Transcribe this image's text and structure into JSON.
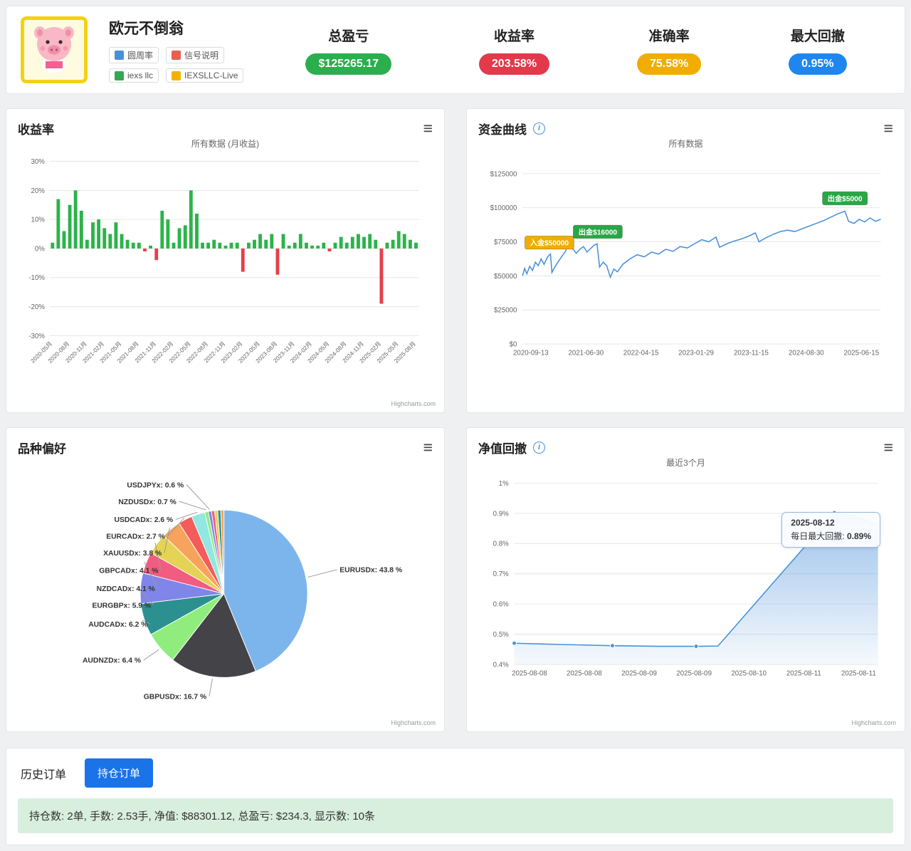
{
  "header": {
    "title": "欧元不倒翁",
    "tags": [
      {
        "label": "圆周率",
        "icon": "user-icon",
        "icon_color": "#4a90d9"
      },
      {
        "label": "信号说明",
        "icon": "signal-doc-icon",
        "icon_color": "#e8604c"
      },
      {
        "label": "iexs llc",
        "icon": "broker-icon",
        "icon_color": "#35a853"
      },
      {
        "label": "IEXSLLC-Live",
        "icon": "account-icon",
        "icon_color": "#f0b400"
      }
    ],
    "stats": [
      {
        "label": "总盈亏",
        "value": "$125265.17",
        "color": "#2bae4e"
      },
      {
        "label": "收益率",
        "value": "203.58%",
        "color": "#e2394b"
      },
      {
        "label": "准确率",
        "value": "75.58%",
        "color": "#f0ad00"
      },
      {
        "label": "最大回撤",
        "value": "0.95%",
        "color": "#1e86ee"
      }
    ]
  },
  "panels": {
    "returns": {
      "title": "收益率",
      "subtitle": "所有数据 (月收益)",
      "credit": "Highcharts.com"
    },
    "equity": {
      "title": "资金曲线",
      "subtitle": "所有数据"
    },
    "symbols": {
      "title": "品种偏好",
      "credit": "Highcharts.com"
    },
    "drawdown": {
      "title": "净值回撤",
      "subtitle": "最近3个月",
      "credit": "Highcharts.com",
      "tooltip": {
        "date": "2025-08-12",
        "label": "每日最大回撤:",
        "value": "0.89%"
      }
    }
  },
  "chart_data": [
    {
      "name": "monthly_returns",
      "type": "bar",
      "title": "收益率",
      "subtitle": "所有数据 (月收益)",
      "ylim": [
        -30,
        30
      ],
      "ytick_step": 10,
      "positive_color": "#2cb34a",
      "negative_color": "#e5404a",
      "values": [
        2,
        17,
        6,
        15,
        20,
        13,
        3,
        9,
        10,
        7,
        5,
        9,
        5,
        3,
        2,
        2,
        -1,
        1,
        -4,
        13,
        10,
        2,
        7,
        8,
        20,
        12,
        2,
        2,
        3,
        2,
        1,
        2,
        2,
        -8,
        2,
        3,
        5,
        3,
        5,
        -9,
        5,
        1,
        2,
        5,
        2,
        1,
        1,
        2,
        -1,
        2,
        4,
        2,
        4,
        5,
        4,
        5,
        3,
        -19,
        2,
        3,
        6,
        5,
        3,
        2
      ],
      "tick_every": 3,
      "x_tick_labels": [
        "2020-05月",
        "2020-08月",
        "2020-11月",
        "2021-02月",
        "2021-05月",
        "2021-08月",
        "2021-11月",
        "2022-02月",
        "2022-05月",
        "2022-08月",
        "2022-11月",
        "2023-02月",
        "2023-05月",
        "2023-08月",
        "2023-11月",
        "2024-02月",
        "2024-05月",
        "2024-08月",
        "2024-11月",
        "2025-02月",
        "2025-05月",
        "2025-08月"
      ]
    },
    {
      "name": "equity_curve",
      "type": "line",
      "title": "资金曲线",
      "subtitle": "所有数据",
      "line_color": "#4a90d9",
      "ymax": 131000,
      "yticks": [
        0,
        25000,
        50000,
        75000,
        100000,
        125000
      ],
      "x_labels": [
        "2020-09-13",
        "2021-06-30",
        "2022-04-15",
        "2023-01-29",
        "2023-11-15",
        "2024-08-30",
        "2025-06-15"
      ],
      "points": [
        [
          0,
          50000
        ],
        [
          0.006,
          55500
        ],
        [
          0.012,
          51500
        ],
        [
          0.02,
          57000
        ],
        [
          0.028,
          54000
        ],
        [
          0.036,
          60000
        ],
        [
          0.044,
          57500
        ],
        [
          0.052,
          62500
        ],
        [
          0.06,
          58500
        ],
        [
          0.07,
          64000
        ],
        [
          0.078,
          66000
        ],
        [
          0.082,
          52500
        ],
        [
          0.09,
          56500
        ],
        [
          0.1,
          60500
        ],
        [
          0.11,
          64500
        ],
        [
          0.12,
          68000
        ],
        [
          0.13,
          75500
        ],
        [
          0.14,
          70000
        ],
        [
          0.15,
          66500
        ],
        [
          0.16,
          69500
        ],
        [
          0.17,
          71500
        ],
        [
          0.18,
          67500
        ],
        [
          0.19,
          70000
        ],
        [
          0.2,
          72500
        ],
        [
          0.208,
          73500
        ],
        [
          0.215,
          56500
        ],
        [
          0.225,
          60000
        ],
        [
          0.235,
          57500
        ],
        [
          0.245,
          49000
        ],
        [
          0.255,
          55000
        ],
        [
          0.265,
          53000
        ],
        [
          0.28,
          58500
        ],
        [
          0.3,
          62500
        ],
        [
          0.32,
          65500
        ],
        [
          0.34,
          64000
        ],
        [
          0.36,
          67500
        ],
        [
          0.38,
          66000
        ],
        [
          0.4,
          69500
        ],
        [
          0.42,
          68000
        ],
        [
          0.44,
          71500
        ],
        [
          0.46,
          70500
        ],
        [
          0.48,
          73500
        ],
        [
          0.5,
          76500
        ],
        [
          0.52,
          75000
        ],
        [
          0.54,
          78500
        ],
        [
          0.55,
          71000
        ],
        [
          0.57,
          73500
        ],
        [
          0.59,
          75500
        ],
        [
          0.61,
          77000
        ],
        [
          0.63,
          79000
        ],
        [
          0.65,
          81500
        ],
        [
          0.66,
          75000
        ],
        [
          0.68,
          78000
        ],
        [
          0.7,
          80500
        ],
        [
          0.72,
          82500
        ],
        [
          0.74,
          83500
        ],
        [
          0.76,
          82500
        ],
        [
          0.78,
          84500
        ],
        [
          0.8,
          86500
        ],
        [
          0.82,
          88500
        ],
        [
          0.84,
          90500
        ],
        [
          0.86,
          93000
        ],
        [
          0.88,
          95500
        ],
        [
          0.9,
          97500
        ],
        [
          0.91,
          90000
        ],
        [
          0.925,
          88500
        ],
        [
          0.94,
          91500
        ],
        [
          0.955,
          89500
        ],
        [
          0.97,
          92500
        ],
        [
          0.985,
          90000
        ],
        [
          1,
          91500
        ]
      ],
      "annotations": [
        {
          "label": "入金$50000",
          "x": 0.075,
          "y": 66000,
          "color": "#f0ad00"
        },
        {
          "label": "出金$16000",
          "x": 0.21,
          "y": 74000,
          "color": "#28a745"
        },
        {
          "label": "出金$5000",
          "x": 0.9,
          "y": 98500,
          "color": "#28a745"
        }
      ]
    },
    {
      "name": "symbol_preference",
      "type": "pie",
      "title": "品种偏好",
      "slices": [
        {
          "label": "EURUSDx",
          "value": 43.8,
          "color": "#7cb5ec"
        },
        {
          "label": "GBPUSDx",
          "value": 16.7,
          "color": "#434348"
        },
        {
          "label": "AUDNZDx",
          "value": 6.4,
          "color": "#90ed7d"
        },
        {
          "label": "AUDCADx",
          "value": 6.2,
          "color": "#2b908f"
        },
        {
          "label": "EURGBPx",
          "value": 5.9,
          "color": "#8085e9"
        },
        {
          "label": "NZDCADx",
          "value": 4.1,
          "color": "#f15c80"
        },
        {
          "label": "GBPCADx",
          "value": 4.1,
          "color": "#e4d354"
        },
        {
          "label": "XAUUSDx",
          "value": 3.8,
          "color": "#f7a35c"
        },
        {
          "label": "EURCADx",
          "value": 2.7,
          "color": "#f45b5b"
        },
        {
          "label": "USDCADx",
          "value": 2.6,
          "color": "#91e8e1"
        },
        {
          "label": "NZDUSDx",
          "value": 0.7,
          "color": "#90ed7d"
        },
        {
          "label": "USDJPYx",
          "value": 0.6,
          "color": "#8085e9"
        },
        {
          "label": "",
          "value": 0.6,
          "color": "#f15c80"
        },
        {
          "label": "",
          "value": 0.6,
          "color": "#e4d354"
        },
        {
          "label": "",
          "value": 0.6,
          "color": "#2b908f"
        },
        {
          "label": "",
          "value": 0.6,
          "color": "#f7a35c"
        }
      ]
    },
    {
      "name": "net_drawdown",
      "type": "area",
      "title": "净值回撤",
      "subtitle": "最近3个月",
      "line_color": "#4a90d9",
      "ymin": 0.4,
      "ymax": 1.0,
      "yticks": [
        0.4,
        0.5,
        0.6,
        0.7,
        0.8,
        0.9,
        1
      ],
      "x_labels": [
        "2025-08-08",
        "2025-08-08",
        "2025-08-09",
        "2025-08-09",
        "2025-08-10",
        "2025-08-11",
        "2025-08-11"
      ],
      "points": [
        [
          0,
          0.47
        ],
        [
          0.13,
          0.466
        ],
        [
          0.27,
          0.462
        ],
        [
          0.4,
          0.46
        ],
        [
          0.5,
          0.46
        ],
        [
          0.56,
          0.461
        ],
        [
          0.88,
          0.902
        ],
        [
          0.94,
          0.888
        ],
        [
          1,
          0.862
        ]
      ],
      "markers": [
        0,
        2,
        4,
        6
      ]
    }
  ],
  "orders": {
    "tabs": [
      {
        "label": "历史订单",
        "active": false
      },
      {
        "label": "持仓订单",
        "active": true
      }
    ],
    "summary": "持仓数: 2单,  手数: 2.53手,  净值: $88301.12, 总盈亏: $234.3,  显示数: 10条"
  }
}
